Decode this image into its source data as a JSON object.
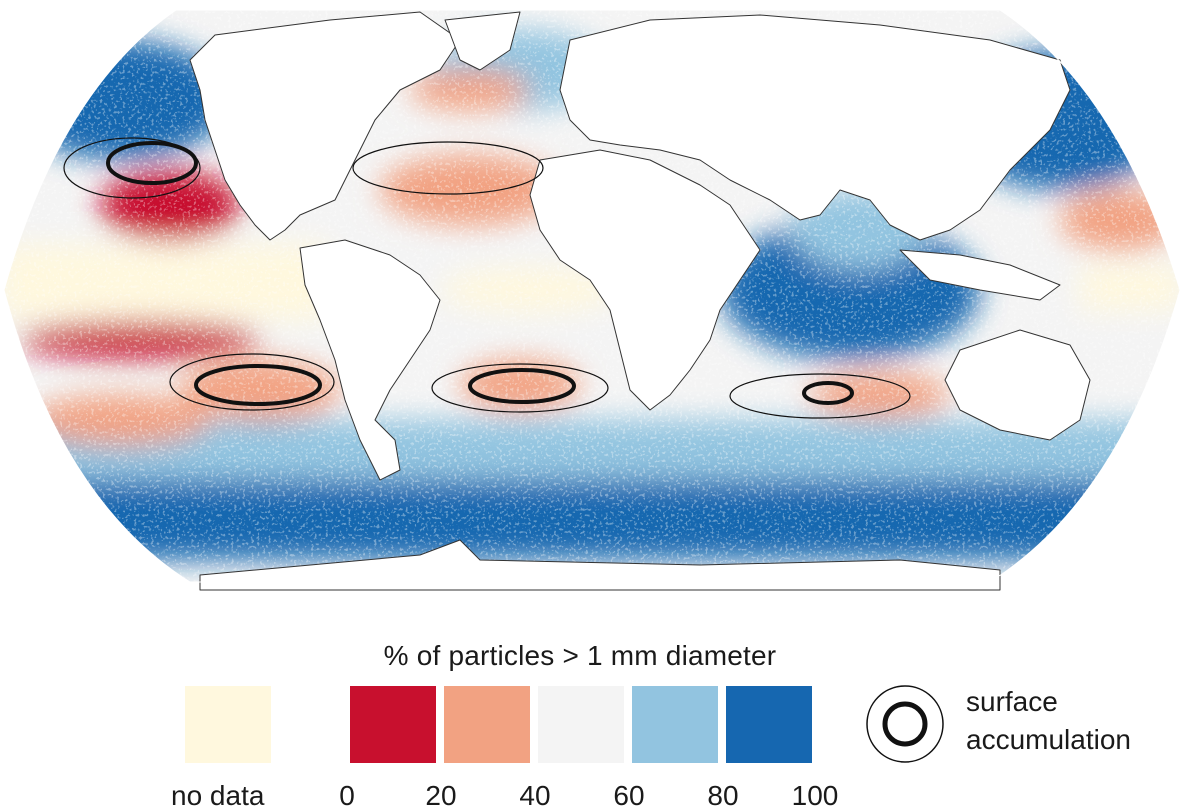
{
  "legend": {
    "title": "% of particles > 1 mm diameter",
    "no_data_label": "no data",
    "no_data_color": "#fff8de",
    "bins": [
      {
        "range": [
          0,
          20
        ],
        "color": "#c8102e"
      },
      {
        "range": [
          20,
          40
        ],
        "color": "#f2a282"
      },
      {
        "range": [
          40,
          60
        ],
        "color": "#f4f4f4"
      },
      {
        "range": [
          60,
          80
        ],
        "color": "#92c4e0"
      },
      {
        "range": [
          80,
          100
        ],
        "color": "#1667b0"
      }
    ],
    "tick_labels": [
      "0",
      "20",
      "40",
      "60",
      "80",
      "100"
    ],
    "accumulation_label_line1": "surface",
    "accumulation_label_line2": "accumulation"
  },
  "map": {
    "projection": "robinson",
    "land_color": "#ffffff",
    "border_color": "#333333",
    "accumulation_zones": [
      "North Pacific",
      "North Atlantic",
      "South Pacific",
      "South Atlantic",
      "Indian Ocean"
    ]
  }
}
